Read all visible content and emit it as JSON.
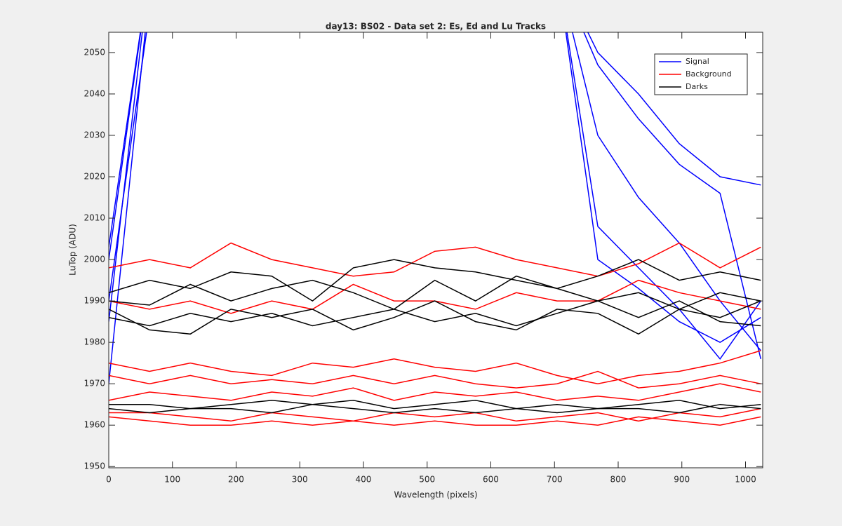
{
  "chart_data": {
    "type": "line",
    "title": "day13: BS02 - Data set 2: Es, Ed and Lu Tracks",
    "xlabel": "Wavelength (pixels)",
    "ylabel": "LuTop (ADU)",
    "x": [
      0,
      64,
      128,
      192,
      256,
      320,
      384,
      448,
      512,
      576,
      640,
      704,
      768,
      832,
      896,
      960,
      1024
    ],
    "xlim": [
      0,
      1027
    ],
    "ylim": [
      1949.7,
      2054.9
    ],
    "xticks": [
      0,
      100,
      200,
      300,
      400,
      500,
      600,
      700,
      800,
      900,
      1000
    ],
    "yticks": [
      1950,
      1960,
      1970,
      1980,
      1990,
      2000,
      2010,
      2020,
      2030,
      2040,
      2050
    ],
    "legend": "top-right",
    "series": [
      {
        "name": "Signal",
        "color": "#0000ff",
        "lines": [
          [
            2003,
            2070,
            null,
            null,
            null,
            null,
            null,
            null,
            null,
            null,
            null,
            2070,
            2050,
            2040,
            2028,
            2020,
            2018
          ],
          [
            1985,
            2070,
            null,
            null,
            null,
            null,
            null,
            null,
            null,
            null,
            null,
            2070,
            2047,
            2034,
            2023,
            2016,
            1976
          ],
          [
            1970,
            2065,
            null,
            null,
            null,
            null,
            null,
            null,
            null,
            null,
            null,
            2070,
            2030,
            2015,
            2004,
            1990,
            1978
          ],
          [
            1990,
            2060,
            null,
            null,
            null,
            null,
            null,
            null,
            null,
            null,
            null,
            2070,
            2008,
            1998,
            1988,
            1976,
            1990
          ],
          [
            2000,
            2070,
            null,
            null,
            null,
            null,
            null,
            null,
            null,
            null,
            null,
            2070,
            2000,
            1993,
            1985,
            1980,
            1986
          ]
        ]
      },
      {
        "name": "Background",
        "color": "#ff0000",
        "lines": [
          [
            1998,
            2000,
            1998,
            2004,
            2000,
            1998,
            1996,
            1997,
            2002,
            2003,
            2000,
            1998,
            1996,
            1999,
            2004,
            1998,
            2003
          ],
          [
            1990,
            1988,
            1990,
            1987,
            1990,
            1988,
            1994,
            1990,
            1990,
            1988,
            1992,
            1990,
            1990,
            1995,
            1992,
            1990,
            1988
          ],
          [
            1975,
            1973,
            1975,
            1973,
            1972,
            1975,
            1974,
            1976,
            1974,
            1973,
            1975,
            1972,
            1970,
            1972,
            1973,
            1975,
            1978
          ],
          [
            1972,
            1970,
            1972,
            1970,
            1971,
            1970,
            1972,
            1970,
            1972,
            1970,
            1969,
            1970,
            1973,
            1969,
            1970,
            1972,
            1970
          ],
          [
            1966,
            1968,
            1967,
            1966,
            1968,
            1967,
            1969,
            1966,
            1968,
            1967,
            1968,
            1966,
            1967,
            1966,
            1968,
            1970,
            1968
          ],
          [
            1963,
            1963,
            1962,
            1961,
            1963,
            1962,
            1961,
            1963,
            1962,
            1963,
            1961,
            1962,
            1963,
            1961,
            1963,
            1962,
            1964
          ],
          [
            1962,
            1961,
            1960,
            1960,
            1961,
            1960,
            1961,
            1960,
            1961,
            1960,
            1960,
            1961,
            1960,
            1962,
            1961,
            1960,
            1962
          ]
        ]
      },
      {
        "name": "Darks",
        "color": "#000000",
        "lines": [
          [
            1992,
            1995,
            1993,
            1997,
            1996,
            1990,
            1998,
            2000,
            1998,
            1997,
            1995,
            1993,
            1996,
            2000,
            1995,
            1997,
            1995
          ],
          [
            1990,
            1989,
            1994,
            1990,
            1993,
            1995,
            1992,
            1988,
            1995,
            1990,
            1996,
            1993,
            1990,
            1992,
            1988,
            1992,
            1990
          ],
          [
            1986,
            1984,
            1987,
            1985,
            1987,
            1984,
            1986,
            1988,
            1985,
            1987,
            1984,
            1987,
            1990,
            1986,
            1990,
            1985,
            1984
          ],
          [
            1988,
            1983,
            1982,
            1988,
            1986,
            1988,
            1983,
            1986,
            1990,
            1985,
            1983,
            1988,
            1987,
            1982,
            1988,
            1986,
            1990
          ],
          [
            1965,
            1965,
            1964,
            1965,
            1966,
            1965,
            1966,
            1964,
            1965,
            1966,
            1964,
            1965,
            1964,
            1965,
            1966,
            1964,
            1965
          ],
          [
            1964,
            1963,
            1964,
            1964,
            1963,
            1965,
            1964,
            1963,
            1964,
            1963,
            1964,
            1963,
            1964,
            1964,
            1963,
            1965,
            1964
          ]
        ]
      }
    ]
  }
}
